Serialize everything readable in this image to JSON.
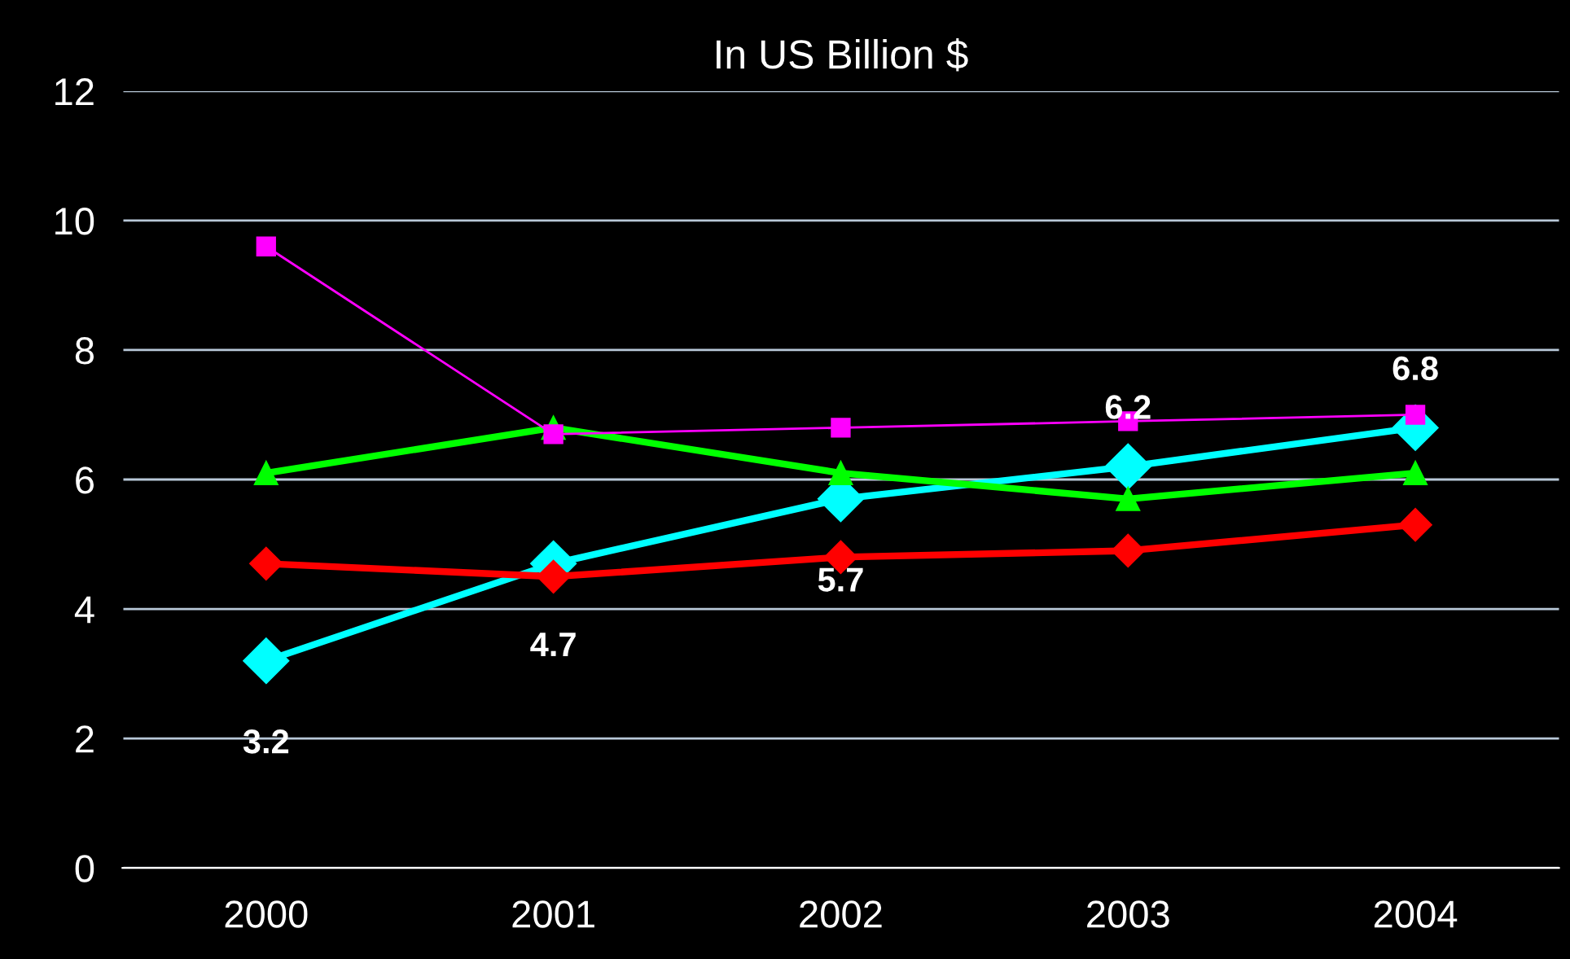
{
  "chart_data": {
    "type": "line",
    "title": "In US Billion $",
    "categories": [
      "2000",
      "2001",
      "2002",
      "2003",
      "2004"
    ],
    "series": [
      {
        "color": "#ff00ff",
        "values": [
          9.6,
          6.7,
          6.8,
          6.9,
          7.0
        ],
        "marker": "square"
      },
      {
        "color": "#00ff00",
        "values": [
          6.1,
          6.8,
          6.1,
          5.7,
          6.1
        ],
        "marker": "triangle"
      },
      {
        "color": "#ff0000",
        "values": [
          4.7,
          4.5,
          4.8,
          4.9,
          5.3
        ],
        "marker": "diamond"
      },
      {
        "color": "#00ffff",
        "values": [
          3.2,
          4.7,
          5.7,
          6.2,
          6.8
        ],
        "marker": "diamond",
        "value_labels": [
          "3.2",
          "4.7",
          "5.7",
          "6.2",
          "6.8"
        ]
      }
    ],
    "ylim": [
      0,
      12
    ],
    "yticks": [
      0,
      2,
      4,
      6,
      8,
      10,
      12
    ],
    "grid": "y",
    "legend": false
  }
}
